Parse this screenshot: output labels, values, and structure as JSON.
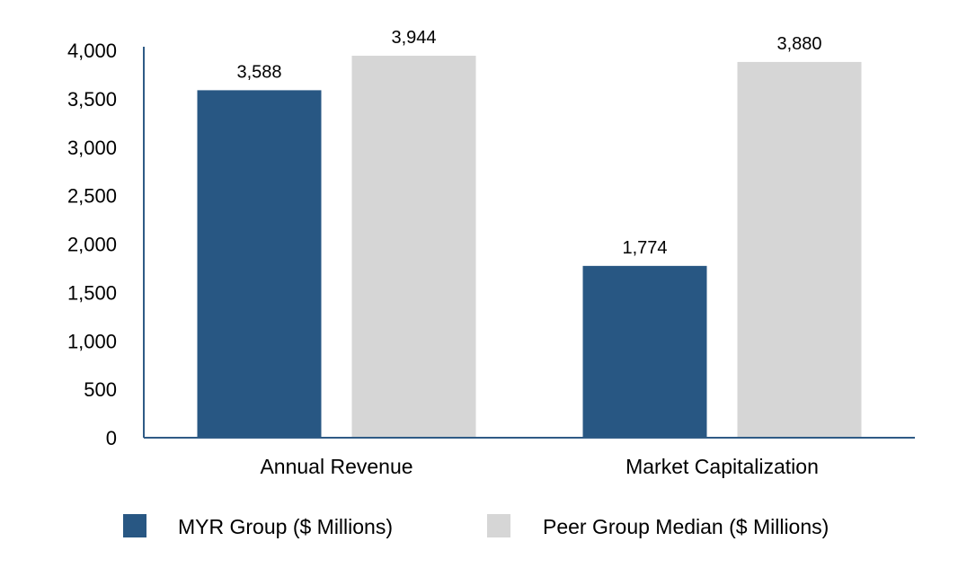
{
  "chart_data": {
    "type": "bar",
    "title": "",
    "xlabel": "",
    "ylabel": "",
    "categories": [
      "Annual Revenue",
      "Market Capitalization"
    ],
    "series": [
      {
        "name": "MYR Group ($ Millions)",
        "values": [
          3588,
          1774
        ],
        "labels": [
          "3,588",
          "1,774"
        ],
        "color": "#285783"
      },
      {
        "name": "Peer Group Median ($ Millions)",
        "values": [
          3944,
          3880
        ],
        "labels": [
          "3,944",
          "3,880"
        ],
        "color": "#d6d6d6"
      }
    ],
    "ylim": [
      0,
      4000
    ],
    "yticks": [
      0,
      500,
      1000,
      1500,
      2000,
      2500,
      3000,
      3500,
      4000
    ],
    "ytick_labels": [
      "0",
      "500",
      "1,000",
      "1,500",
      "2,000",
      "2,500",
      "3,000",
      "3,500",
      "4,000"
    ],
    "grid": false,
    "legend_position": "bottom",
    "axis_color": "#2f5b86"
  }
}
